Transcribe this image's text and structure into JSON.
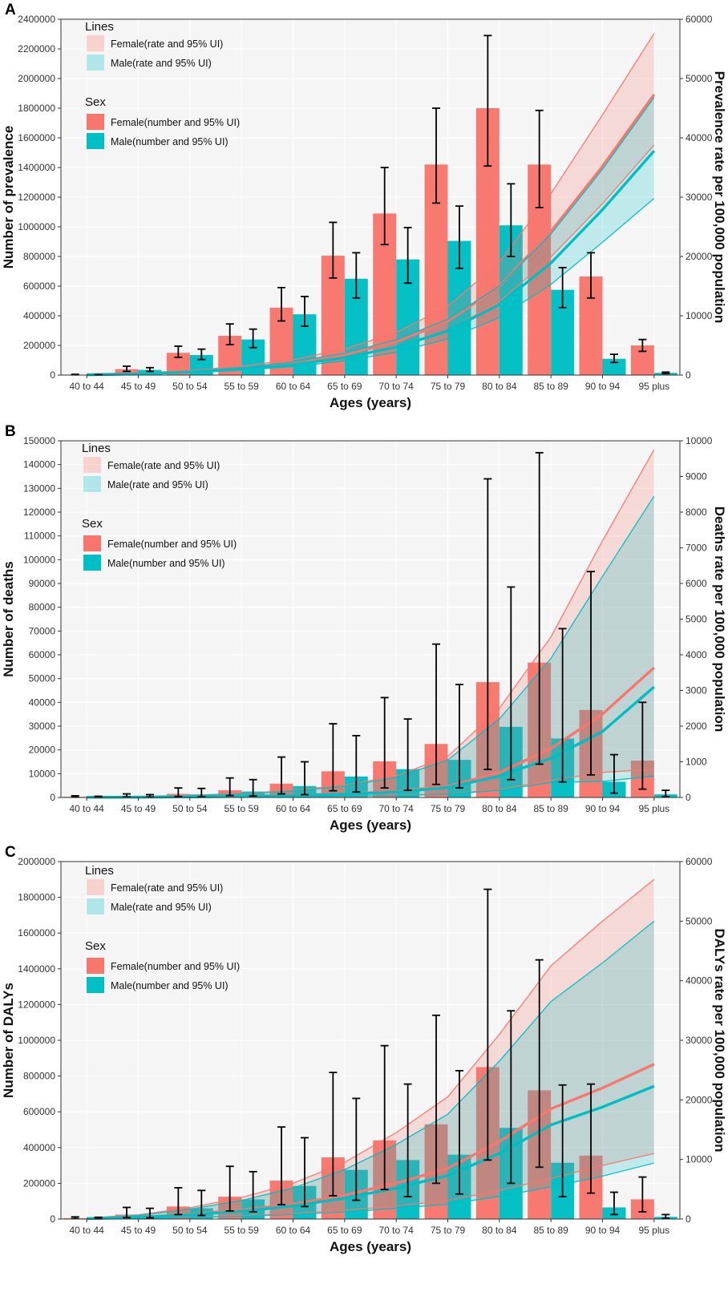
{
  "colors": {
    "female": "#F8766D",
    "male": "#00BFC4",
    "female_band": "#F8766D",
    "male_band": "#00BFC4",
    "panel_bg": "#F5F5F5",
    "grid": "#FFFFFF",
    "errorbar": "#000000"
  },
  "legend": {
    "lines_title": "Lines",
    "female_rate": "Female(rate and 95% UI)",
    "male_rate": "Male(rate and 95% UI)",
    "sex_title": "Sex",
    "female_number": "Female(number and 95% UI)",
    "male_number": "Male(number and 95% UI)"
  },
  "chart_data": [
    {
      "panel_label": "A",
      "type": "bar",
      "xlabel": "Ages (years)",
      "ylabel": "Number of prevalence",
      "ylabel_right": "Prevalence rate per 100,000 population",
      "categories": [
        "40 to 44",
        "45 to 49",
        "50 to 54",
        "55 to 59",
        "60 to 64",
        "65 to 69",
        "70 to 74",
        "75 to 79",
        "80 to 84",
        "85 to 89",
        "90 to 94",
        "95 plus"
      ],
      "ylim": [
        0,
        2400000
      ],
      "yticks": [
        0,
        200000,
        400000,
        600000,
        800000,
        1000000,
        1200000,
        1400000,
        1600000,
        1800000,
        2000000,
        2200000,
        2400000
      ],
      "ytick_labels": [
        "0",
        "200000",
        "400000",
        "600000",
        "800000",
        "1000000",
        "1200000",
        "1400000",
        "1600000",
        "1800000",
        "2000000",
        "2200000",
        "2400000"
      ],
      "ylim_right": [
        0,
        60000
      ],
      "yticks_right": [
        0,
        10000,
        20000,
        30000,
        40000,
        50000,
        60000
      ],
      "ytick_labels_right": [
        "0",
        "10000",
        "20000",
        "30000",
        "40000",
        "50000",
        "60000"
      ],
      "series": [
        {
          "name": "Female(number and 95% UI)",
          "values": [
            3000,
            40000,
            150000,
            265000,
            455000,
            805000,
            1090000,
            1420000,
            1800000,
            1420000,
            665000,
            200000
          ],
          "lower": [
            1500,
            25000,
            120000,
            205000,
            365000,
            655000,
            880000,
            1160000,
            1410000,
            1130000,
            520000,
            160000
          ],
          "upper": [
            5000,
            60000,
            195000,
            345000,
            590000,
            1030000,
            1400000,
            1800000,
            2290000,
            1785000,
            825000,
            240000
          ]
        },
        {
          "name": "Male(number and 95% UI)",
          "values": [
            2000,
            35000,
            135000,
            240000,
            410000,
            650000,
            780000,
            905000,
            1010000,
            575000,
            110000,
            15000
          ],
          "lower": [
            1000,
            25000,
            105000,
            185000,
            330000,
            520000,
            620000,
            720000,
            800000,
            455000,
            85000,
            10000
          ],
          "upper": [
            3000,
            50000,
            175000,
            310000,
            530000,
            825000,
            995000,
            1140000,
            1290000,
            725000,
            140000,
            20000
          ]
        }
      ],
      "rate_series": [
        {
          "name": "Female(rate and 95% UI)",
          "values": [
            60,
            230,
            590,
            1160,
            2020,
            3440,
            5600,
            9070,
            15000,
            24200,
            35200,
            47300
          ],
          "lower": [
            50,
            190,
            490,
            970,
            1690,
            2860,
            4640,
            7500,
            12400,
            19900,
            28900,
            38800
          ],
          "upper": [
            75,
            300,
            760,
            1490,
            2600,
            4400,
            7180,
            11580,
            19050,
            30600,
            43900,
            57600
          ]
        },
        {
          "name": "Male(rate and 95% UI)",
          "values": [
            50,
            190,
            500,
            1000,
            1740,
            2930,
            4710,
            7450,
            11900,
            18900,
            27900,
            37800
          ],
          "lower": [
            40,
            155,
            410,
            820,
            1430,
            2410,
            3860,
            6100,
            9700,
            15300,
            22400,
            29800
          ],
          "upper": [
            65,
            245,
            640,
            1270,
            2200,
            3700,
            5950,
            9400,
            15000,
            23800,
            34700,
            46800
          ]
        }
      ]
    },
    {
      "panel_label": "B",
      "type": "bar",
      "xlabel": "Ages (years)",
      "ylabel": "Number of deaths",
      "ylabel_right": "Deaths rate per 100,000 population",
      "categories": [
        "40 to 44",
        "45 to 49",
        "50 to 54",
        "55 to 59",
        "60 to 64",
        "65 to 69",
        "70 to 74",
        "75 to 79",
        "80 to 84",
        "85 to 89",
        "90 to 94",
        "95 plus"
      ],
      "ylim": [
        0,
        150000
      ],
      "yticks": [
        0,
        10000,
        20000,
        30000,
        40000,
        50000,
        60000,
        70000,
        80000,
        90000,
        100000,
        110000,
        120000,
        130000,
        140000,
        150000
      ],
      "ytick_labels": [
        "0",
        "10000",
        "20000",
        "30000",
        "40000",
        "50000",
        "60000",
        "70000",
        "80000",
        "90000",
        "100000",
        "110000",
        "120000",
        "130000",
        "140000",
        "150000"
      ],
      "ylim_right": [
        0,
        10000
      ],
      "yticks_right": [
        0,
        1000,
        2000,
        3000,
        4000,
        5000,
        6000,
        7000,
        8000,
        9000,
        10000
      ],
      "ytick_labels_right": [
        "0",
        "1000",
        "2000",
        "3000",
        "4000",
        "5000",
        "6000",
        "7000",
        "8000",
        "9000",
        "10000"
      ],
      "series": [
        {
          "name": "Female(number and 95% UI)",
          "values": [
            300,
            700,
            1500,
            3000,
            5800,
            11000,
            15200,
            22500,
            48500,
            56700,
            36800,
            15500
          ],
          "lower": [
            100,
            200,
            400,
            800,
            1500,
            2800,
            4000,
            5500,
            11800,
            14000,
            9500,
            3500
          ],
          "upper": [
            700,
            1500,
            4000,
            8200,
            17000,
            31000,
            42000,
            64500,
            134000,
            145000,
            95000,
            40000
          ]
        },
        {
          "name": "Male(number and 95% UI)",
          "values": [
            200,
            500,
            1300,
            2500,
            4800,
            8800,
            11900,
            15800,
            29700,
            24800,
            6600,
            1300
          ],
          "lower": [
            80,
            150,
            300,
            600,
            1200,
            2300,
            3000,
            4000,
            7500,
            6500,
            1800,
            300
          ],
          "upper": [
            500,
            1200,
            3800,
            7500,
            15000,
            26000,
            33000,
            47500,
            88500,
            71000,
            18000,
            3000
          ]
        }
      ],
      "rate_series": [
        {
          "name": "Female(rate and 95% UI)",
          "values": [
            5,
            10,
            20,
            35,
            60,
            100,
            170,
            310,
            700,
            1370,
            2340,
            3640
          ],
          "lower": [
            2,
            4,
            8,
            12,
            20,
            40,
            60,
            100,
            220,
            480,
            700,
            800
          ],
          "upper": [
            15,
            30,
            60,
            110,
            200,
            350,
            600,
            1150,
            2500,
            4500,
            7200,
            9750
          ]
        },
        {
          "name": "Male(rate and 95% UI)",
          "values": [
            4,
            8,
            15,
            30,
            50,
            90,
            150,
            280,
            600,
            1100,
            1850,
            3100
          ],
          "lower": [
            2,
            3,
            6,
            10,
            18,
            35,
            50,
            90,
            200,
            420,
            450,
            600
          ],
          "upper": [
            12,
            25,
            50,
            100,
            180,
            320,
            560,
            1050,
            2200,
            3900,
            6200,
            8450
          ]
        }
      ]
    },
    {
      "panel_label": "C",
      "type": "bar",
      "xlabel": "Ages (years)",
      "ylabel": "Number of DALYs",
      "ylabel_right": "DALYs rate per 100,000 population",
      "categories": [
        "40 to 44",
        "45 to 49",
        "50 to 54",
        "55 to 59",
        "60 to 64",
        "65 to 69",
        "70 to 74",
        "75 to 79",
        "80 to 84",
        "85 to 89",
        "90 to 94",
        "95 plus"
      ],
      "ylim": [
        0,
        2000000
      ],
      "yticks": [
        0,
        200000,
        400000,
        600000,
        800000,
        1000000,
        1200000,
        1400000,
        1600000,
        1800000,
        2000000
      ],
      "ytick_labels": [
        "0",
        "200000",
        "400000",
        "600000",
        "800000",
        "1000000",
        "1200000",
        "1400000",
        "1600000",
        "1800000",
        "2000000"
      ],
      "ylim_right": [
        0,
        60000
      ],
      "yticks_right": [
        0,
        10000,
        20000,
        30000,
        40000,
        50000,
        60000
      ],
      "ytick_labels_right": [
        "0",
        "10000",
        "20000",
        "30000",
        "40000",
        "50000",
        "60000"
      ],
      "series": [
        {
          "name": "Female(number and 95% UI)",
          "values": [
            5000,
            25000,
            70000,
            125000,
            215000,
            345000,
            440000,
            530000,
            850000,
            720000,
            355000,
            110000
          ],
          "lower": [
            2000,
            8000,
            25000,
            45000,
            80000,
            130000,
            165000,
            200000,
            330000,
            290000,
            145000,
            40000
          ],
          "upper": [
            12000,
            65000,
            175000,
            295000,
            515000,
            820000,
            970000,
            1140000,
            1845000,
            1450000,
            755000,
            235000
          ]
        },
        {
          "name": "Male(number and 95% UI)",
          "values": [
            4000,
            22000,
            60000,
            110000,
            185000,
            275000,
            330000,
            360000,
            510000,
            315000,
            65000,
            12000
          ],
          "lower": [
            1500,
            7000,
            20000,
            40000,
            70000,
            105000,
            125000,
            140000,
            200000,
            125000,
            25000,
            4000
          ],
          "upper": [
            10000,
            60000,
            160000,
            265000,
            455000,
            675000,
            755000,
            830000,
            1165000,
            750000,
            150000,
            25000
          ]
        }
      ],
      "rate_series": [
        {
          "name": "Female(rate and 95% UI)",
          "values": [
            80,
            300,
            800,
            1500,
            2500,
            4000,
            6000,
            8500,
            13000,
            18500,
            22000,
            26000
          ],
          "lower": [
            30,
            110,
            300,
            550,
            900,
            1450,
            2200,
            3100,
            4800,
            6800,
            9000,
            11000
          ],
          "upper": [
            180,
            700,
            1900,
            3600,
            6000,
            9500,
            14500,
            20500,
            31000,
            42500,
            50000,
            57000
          ]
        },
        {
          "name": "Male(rate and 95% UI)",
          "values": [
            70,
            260,
            700,
            1300,
            2200,
            3500,
            5200,
            7300,
            11000,
            15800,
            18800,
            22300
          ],
          "lower": [
            25,
            90,
            250,
            450,
            760,
            1200,
            1800,
            2500,
            3800,
            5400,
            7200,
            9400
          ],
          "upper": [
            150,
            600,
            1650,
            3100,
            5200,
            8300,
            12500,
            17600,
            26500,
            36500,
            43000,
            50000
          ]
        }
      ]
    }
  ]
}
